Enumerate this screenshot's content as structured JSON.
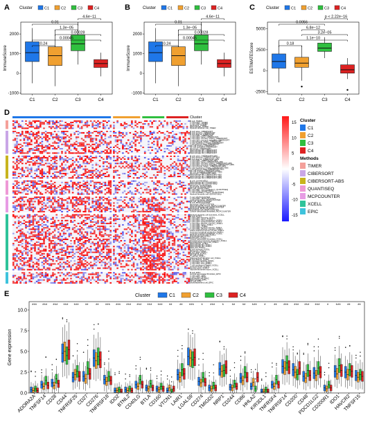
{
  "colors": {
    "C1": "#1f77e8",
    "C2": "#f0a030",
    "C3": "#2fbf3f",
    "C4": "#dd2222"
  },
  "method_colors": {
    "TIMER": "#f4a09a",
    "CIBERSORT": "#c9a6e6",
    "CIBERSORT-ABS": "#c8b41e",
    "QUANTISEQ": "#ee99d6",
    "MCPCOUNTER": "#e79ce4",
    "XCELL": "#2fc39a",
    "EPIC": "#3ec3dc"
  },
  "chart_data": [
    {
      "panel": "A",
      "type": "box",
      "legend_title": "Cluster",
      "legend": [
        "C1",
        "C2",
        "C3",
        "C4"
      ],
      "categories": [
        "C1",
        "C2",
        "C3",
        "C4"
      ],
      "ylabel": "ImmuneScore",
      "ylim": [
        -1050,
        2600
      ],
      "yticks": [
        "-1000",
        "0",
        "1000",
        "2000"
      ],
      "ytick_values": [
        -1000,
        0,
        1000,
        2000
      ],
      "boxes": [
        {
          "min": -500,
          "q1": 600,
          "median": 1050,
          "q3": 1600,
          "max": 2300
        },
        {
          "min": -650,
          "q1": 400,
          "median": 900,
          "q3": 1350,
          "max": 2200
        },
        {
          "min": 450,
          "q1": 1150,
          "median": 1500,
          "q3": 1950,
          "max": 2950
        },
        {
          "min": -150,
          "q1": 300,
          "median": 500,
          "q3": 700,
          "max": 1050
        }
      ],
      "comparisons": [
        {
          "from": 0,
          "to": 1,
          "label": "0.24"
        },
        {
          "from": 0,
          "to": 3,
          "label": "0.00045"
        },
        {
          "from": 1,
          "to": 3,
          "label": "0.00028"
        },
        {
          "from": 1,
          "to": 2,
          "label": "1.3e−05"
        },
        {
          "from": 0,
          "to": 2,
          "label": "0.01"
        },
        {
          "from": 2,
          "to": 3,
          "label": "4.6e−11"
        }
      ]
    },
    {
      "panel": "B",
      "type": "box",
      "legend_title": "Cluster",
      "legend": [
        "C1",
        "C2",
        "C3",
        "C4"
      ],
      "categories": [
        "C1",
        "C2",
        "C3",
        "C4"
      ],
      "ylabel": "ImmuneScore",
      "ylim": [
        -1050,
        2600
      ],
      "yticks": [
        "-1000",
        "0",
        "1000",
        "2000"
      ],
      "ytick_values": [
        -1000,
        0,
        1000,
        2000
      ],
      "boxes": [
        {
          "min": -500,
          "q1": 600,
          "median": 1050,
          "q3": 1600,
          "max": 2300
        },
        {
          "min": -650,
          "q1": 400,
          "median": 900,
          "q3": 1350,
          "max": 2200
        },
        {
          "min": 450,
          "q1": 1150,
          "median": 1500,
          "q3": 1950,
          "max": 2950
        },
        {
          "min": -150,
          "q1": 300,
          "median": 500,
          "q3": 700,
          "max": 1050
        }
      ],
      "comparisons": [
        {
          "from": 0,
          "to": 1,
          "label": "0.24"
        },
        {
          "from": 0,
          "to": 3,
          "label": "0.00045"
        },
        {
          "from": 1,
          "to": 3,
          "label": "0.00028"
        },
        {
          "from": 1,
          "to": 2,
          "label": "1.3e−05"
        },
        {
          "from": 0,
          "to": 2,
          "label": "0.01"
        },
        {
          "from": 2,
          "to": 3,
          "label": "4.6e−11"
        }
      ]
    },
    {
      "panel": "C",
      "type": "box",
      "legend_title": "Cluster",
      "legend": [
        "C1",
        "C2",
        "C3",
        "C4"
      ],
      "categories": [
        "C1",
        "C2",
        "C3",
        "C4"
      ],
      "ylabel": "ESTIMATEScore",
      "ylim": [
        -2800,
        5800
      ],
      "yticks": [
        "-2500",
        "0",
        "2500",
        "5000"
      ],
      "ytick_values": [
        -2500,
        0,
        2500,
        5000
      ],
      "boxes": [
        {
          "min": -1400,
          "q1": 300,
          "median": 1100,
          "q3": 2000,
          "max": 3500
        },
        {
          "min": -1200,
          "q1": 400,
          "median": 900,
          "q3": 1600,
          "max": 3000
        },
        {
          "min": 1500,
          "q1": 2300,
          "median": 2700,
          "q3": 3300,
          "max": 4000
        },
        {
          "min": -1000,
          "q1": -300,
          "median": 100,
          "q3": 700,
          "max": 1500,
          "outliers": [
            -2300
          ]
        }
      ],
      "outliers": [
        {
          "group": 1,
          "value": -1900
        },
        {
          "group": 3,
          "value": -2300
        }
      ],
      "comparisons": [
        {
          "from": 0,
          "to": 1,
          "label": "0.18"
        },
        {
          "from": 0,
          "to": 3,
          "label": "1.1e−10"
        },
        {
          "from": 1,
          "to": 3,
          "label": "3.2e−05"
        },
        {
          "from": 1,
          "to": 2,
          "label": "6.8e−12"
        },
        {
          "from": 0,
          "to": 2,
          "label": "0.0056"
        },
        {
          "from": 2,
          "to": 3,
          "label": "p < 2.22e−16"
        }
      ]
    },
    {
      "panel": "D",
      "type": "heatmap",
      "annotation_title": "Cluster",
      "cluster_legend": [
        "C1",
        "C2",
        "C3",
        "C4"
      ],
      "methods_title": "Methods",
      "methods_legend": [
        "TIMER",
        "CIBERSORT",
        "CIBERSORT-ABS",
        "QUANTISEQ",
        "MCPCOUNTER",
        "XCELL",
        "EPIC"
      ],
      "colorbar_ticks": [
        "15",
        "10",
        "5",
        "0",
        "-5",
        "-10",
        "-15"
      ],
      "colorbar_values": [
        15,
        10,
        5,
        0,
        -5,
        -10,
        -15
      ],
      "colorbar_range": [
        -17,
        17
      ],
      "row_groups": [
        {
          "method": "TIMER",
          "labels": [
            "B cell_TIMER",
            "T cell CD4+_TIMER",
            "T cell CD8+_TIMER",
            "Neutrophil_TIMER",
            "Macrophage_TIMER",
            "Myeloid dendritic cell_TIMER"
          ]
        },
        {
          "method": "CIBERSORT",
          "labels": [
            "B cell naive_CIBERSORT",
            "B cell memory_CIBERSORT",
            "B cell plasma_CIBERSORT",
            "T cell CD8+_CIBERSORT",
            "T cell CD4+ naive_CIBERSORT",
            "T cell CD4+ memory resting_CIBERSORT",
            "T cell CD4+ memory activated_CIBERSORT",
            "T cell follicular helper_CIBERSORT",
            "T cell regulatory (Tregs)_CIBERSORT",
            "T cell gamma delta_CIBERSORT",
            "NK cell resting_CIBERSORT",
            "NK cell activated_CIBERSORT",
            "Monocyte_CIBERSORT",
            "Macrophage M0_CIBERSORT",
            "Macrophage M1_CIBERSORT",
            "Macrophage M2_CIBERSORT"
          ]
        },
        {
          "method": "CIBERSORT-ABS",
          "labels": [
            "B cell naive_CIBERSORT-ABS",
            "B cell memory_CIBERSORT-ABS",
            "B cell plasma_CIBERSORT-ABS",
            "T cell CD8+_CIBERSORT-ABS",
            "T cell CD4+ naive_CIBERSORT-ABS",
            "T cell CD4+ memory resting_CIBERSORT-ABS",
            "T cell CD4+ memory activated_CIBERSORT-ABS",
            "T cell follicular helper_CIBERSORT-ABS",
            "T cell regulatory (Tregs)_CIBERSORT-ABS",
            "T cell gamma delta_CIBERSORT-ABS",
            "NK cell resting_CIBERSORT-ABS",
            "NK cell activated_CIBERSORT-ABS",
            "Monocyte_CIBERSORT-ABS",
            "Macrophage M0_CIBERSORT-ABS",
            "Macrophage M1_CIBERSORT-ABS",
            "Macrophage M2_CIBERSORT-ABS"
          ]
        },
        {
          "method": "QUANTISEQ",
          "labels": [
            "B cell_QUANTISEQ",
            "Macrophage M1_QUANTISEQ",
            "Macrophage M2_QUANTISEQ",
            "Monocyte_QUANTISEQ",
            "Neutrophil_QUANTISEQ",
            "NK cell_QUANTISEQ",
            "T cell CD4+ (non-regulatory)_QUANTISEQ",
            "T cell CD8+_QUANTISEQ",
            "T cell regulatory (Tregs)_QUANTISEQ",
            "Myeloid dendritic cell_QUANTISEQ"
          ]
        },
        {
          "method": "MCPCOUNTER",
          "labels": [
            "T cell_MCPCOUNTER",
            "T cell CD8+_MCPCOUNTER",
            "cytotoxicity score_MCPCOUNTER",
            "NK cell_MCPCOUNTER",
            "B cell_MCPCOUNTER",
            "Monocyte_MCPCOUNTER",
            "Macrophage/Monocyte_MCPCOUNTER",
            "Myeloid dendritic cell_MCPCOUNTER",
            "Neutrophil_MCPCOUNTER",
            "Endothelial cell_MCPCOUNTER",
            "Cancer associated fibroblast_MCPCOUNTER"
          ]
        },
        {
          "method": "XCELL",
          "labels": [
            "Myeloid dendritic cell activated_XCELL",
            "B cell_XCELL",
            "T cell CD4+ memory_XCELL",
            "T cell CD4+ naive_XCELL",
            "T cell CD4+ (non-regulatory)_XCELL",
            "T cell CD4+ central memory_XCELL",
            "T cell CD4+ effector memory_XCELL",
            "T cell CD8+ naive_XCELL",
            "T cell CD8+_XCELL",
            "T cell CD8+ central memory_XCELL",
            "T cell CD8+ effector memory_XCELL",
            "Class-switched memory B cell_XCELL",
            "Common lymphoid progenitor_XCELL",
            "Common myeloid progenitor_XCELL",
            "Myeloid dendritic cell_XCELL",
            "Endothelial cell_XCELL",
            "Eosinophil_XCELL",
            "Cancer associated fibroblast_XCELL",
            "Granulocyte-monocyte progenitor_XCELL",
            "Hematopoietic stem cell_XCELL",
            "Macrophage_XCELL",
            "Macrophage M1_XCELL",
            "Macrophage M2_XCELL",
            "Mast cell_XCELL",
            "B cell memory_XCELL",
            "Monocyte_XCELL",
            "B cell naive_XCELL",
            "Neutrophil_XCELL",
            "NK cell_XCELL",
            "T cell NK_XCELL",
            "Plasmacytoid dendritic cell_XCELL",
            "B cell plasma_XCELL",
            "T cell gamma delta_XCELL",
            "T cell CD4+ Th1_XCELL",
            "T cell CD4+ Th2_XCELL",
            "T cell regulatory (Tregs)_XCELL",
            "immune score_XCELL",
            "stroma score_XCELL",
            "microenvironment score_XCELL"
          ]
        },
        {
          "method": "EPIC",
          "labels": [
            "B cell_EPIC",
            "Cancer associated fibroblast_EPIC",
            "T cell CD4+_EPIC",
            "T cell CD8+_EPIC",
            "Endothelial cell_EPIC",
            "Macrophage_EPIC",
            "NK cell_EPIC",
            "uncharacterized cell_EPIC"
          ]
        }
      ],
      "column_groups": [
        {
          "cluster": "C1",
          "fraction": 0.58
        },
        {
          "cluster": "C2",
          "fraction": 0.16
        },
        {
          "cluster": "C3",
          "fraction": 0.13
        },
        {
          "cluster": "C4",
          "fraction": 0.13
        }
      ]
    },
    {
      "panel": "E",
      "type": "box",
      "legend_title": "Cluster",
      "legend": [
        "C1",
        "C2",
        "C3",
        "C4"
      ],
      "ylabel": "Gene expression",
      "ylim": [
        0,
        11
      ],
      "yticks": [
        "0.0",
        "2.5",
        "5.0",
        "7.5",
        "10.0"
      ],
      "ytick_values": [
        0,
        2.5,
        5,
        7.5,
        10
      ],
      "categories": [
        "ADORA2A",
        "TNFSF14",
        "CD28",
        "CD44",
        "TNFRSF25",
        "CD27",
        "CD276",
        "TNFRSF18",
        "IDO2",
        "BTNL2",
        "CD40LG",
        "BTLA",
        "CD160",
        "VTCN1",
        "LAIR1",
        "LGALS9",
        "CD274",
        "TMIGD2",
        "NRP1",
        "CD244",
        "CD86",
        "HHLA2",
        "KIR3DL1",
        "TNFRSF4",
        "TNFRSF14",
        "CD200",
        "CD48",
        "PDCD1LG2",
        "CD200R1",
        "IDO1",
        "HAVCR2",
        "TNFSF15"
      ],
      "significance": [
        "***",
        "***",
        "***",
        "***",
        "***",
        "**",
        "**",
        "***",
        "***",
        "***",
        "***",
        "***",
        "***",
        "**",
        "**",
        "***",
        "*",
        "***",
        "*",
        "**",
        "**",
        "***",
        "*",
        "**",
        "***",
        "***",
        "***",
        "***",
        "*",
        "***",
        "**",
        "**"
      ],
      "medians": [
        [
          0.4,
          0.3,
          0.5,
          0.3
        ],
        [
          1.0,
          0.8,
          1.5,
          0.9
        ],
        [
          1.2,
          0.9,
          1.7,
          1.1
        ],
        [
          4.8,
          5.0,
          4.5,
          5.2
        ],
        [
          1.9,
          2.2,
          2.6,
          2.0
        ],
        [
          2.0,
          1.7,
          3.0,
          2.3
        ],
        [
          4.2,
          3.9,
          4.4,
          4.0
        ],
        [
          1.6,
          1.4,
          2.0,
          1.5
        ],
        [
          0.3,
          0.3,
          0.4,
          0.2
        ],
        [
          0.4,
          0.3,
          0.5,
          0.3
        ],
        [
          1.0,
          0.8,
          1.6,
          1.0
        ],
        [
          0.6,
          0.5,
          1.1,
          0.6
        ],
        [
          0.5,
          0.4,
          0.8,
          0.5
        ],
        [
          0.3,
          0.6,
          0.2,
          0.5
        ],
        [
          2.2,
          1.9,
          2.8,
          2.3
        ],
        [
          4.4,
          4.2,
          4.0,
          4.3
        ],
        [
          1.4,
          1.2,
          1.9,
          1.3
        ],
        [
          0.6,
          0.5,
          0.9,
          0.6
        ],
        [
          2.9,
          2.6,
          2.7,
          3.1
        ],
        [
          0.7,
          0.6,
          1.1,
          0.8
        ],
        [
          1.8,
          1.5,
          2.5,
          1.9
        ],
        [
          0.8,
          1.3,
          0.5,
          1.9
        ],
        [
          0.2,
          0.2,
          0.4,
          0.2
        ],
        [
          1.0,
          0.8,
          1.6,
          1.0
        ],
        [
          3.2,
          3.0,
          3.6,
          3.1
        ],
        [
          2.8,
          2.5,
          2.2,
          3.0
        ],
        [
          2.0,
          1.8,
          2.7,
          2.1
        ],
        [
          2.4,
          2.1,
          3.0,
          2.5
        ],
        [
          0.6,
          0.5,
          1.0,
          0.6
        ],
        [
          2.6,
          2.3,
          3.3,
          2.7
        ],
        [
          2.5,
          2.2,
          2.8,
          2.6
        ],
        [
          2.1,
          1.9,
          2.2,
          2.0
        ]
      ]
    }
  ]
}
